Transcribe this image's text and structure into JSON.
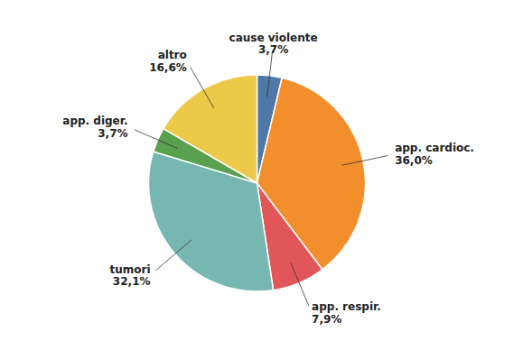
{
  "chart_data": {
    "type": "pie",
    "categories": [
      "cause violente",
      "app. cardioc.",
      "app. respir.",
      "tumori",
      "app. diger.",
      "altro"
    ],
    "values": [
      3.7,
      36.0,
      7.9,
      32.1,
      3.7,
      16.6
    ],
    "value_labels": [
      "3,7%",
      "36,0%",
      "7,9%",
      "32,1%",
      "3,7%",
      "16,6%"
    ],
    "data_labels": true
  }
}
